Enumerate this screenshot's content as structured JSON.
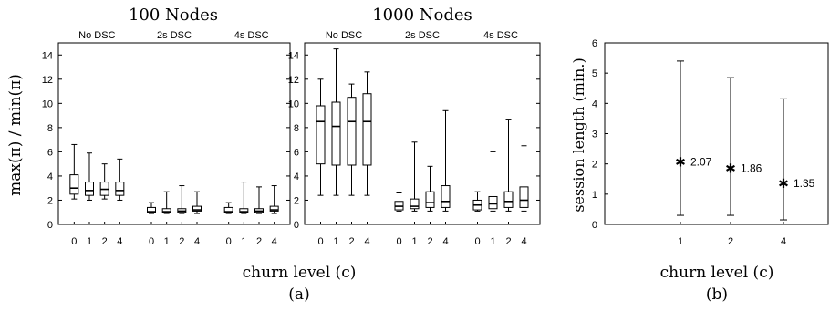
{
  "figure": {
    "panel_a_label": "(a)",
    "panel_b_label": "(b)",
    "xlabel_a": "churn level (c)",
    "xlabel_b": "churn level (c)"
  },
  "chart_data": [
    {
      "type": "box",
      "title": "100 Nodes",
      "ylabel": "max(π) / min(π)",
      "ylim": [
        0,
        15
      ],
      "yticks": [
        0,
        2,
        4,
        6,
        8,
        10,
        12,
        14
      ],
      "groups": [
        {
          "label": "No DSC",
          "categories": [
            "0",
            "1",
            "2",
            "4"
          ],
          "boxes": [
            {
              "min": 2.1,
              "q1": 2.5,
              "median": 3.0,
              "q3": 4.1,
              "max": 6.6
            },
            {
              "min": 2.0,
              "q1": 2.4,
              "median": 2.8,
              "q3": 3.5,
              "max": 5.9
            },
            {
              "min": 2.1,
              "q1": 2.4,
              "median": 2.9,
              "q3": 3.5,
              "max": 5.0
            },
            {
              "min": 2.0,
              "q1": 2.4,
              "median": 2.8,
              "q3": 3.5,
              "max": 5.4
            }
          ]
        },
        {
          "label": "2s DSC",
          "categories": [
            "0",
            "1",
            "2",
            "4"
          ],
          "boxes": [
            {
              "min": 0.9,
              "q1": 1.0,
              "median": 1.05,
              "q3": 1.4,
              "max": 1.8
            },
            {
              "min": 0.9,
              "q1": 1.0,
              "median": 1.05,
              "q3": 1.3,
              "max": 2.7
            },
            {
              "min": 0.9,
              "q1": 1.0,
              "median": 1.1,
              "q3": 1.3,
              "max": 3.2
            },
            {
              "min": 0.9,
              "q1": 1.1,
              "median": 1.2,
              "q3": 1.5,
              "max": 2.7
            }
          ]
        },
        {
          "label": "4s DSC",
          "categories": [
            "0",
            "1",
            "2",
            "4"
          ],
          "boxes": [
            {
              "min": 0.9,
              "q1": 1.0,
              "median": 1.05,
              "q3": 1.4,
              "max": 1.8
            },
            {
              "min": 0.9,
              "q1": 1.0,
              "median": 1.05,
              "q3": 1.3,
              "max": 3.5
            },
            {
              "min": 0.9,
              "q1": 1.0,
              "median": 1.1,
              "q3": 1.3,
              "max": 3.1
            },
            {
              "min": 0.9,
              "q1": 1.1,
              "median": 1.2,
              "q3": 1.5,
              "max": 3.2
            }
          ]
        }
      ]
    },
    {
      "type": "box",
      "title": "1000 Nodes",
      "ylim": [
        0,
        15
      ],
      "yticks": [
        0,
        2,
        4,
        6,
        8,
        10,
        12,
        14
      ],
      "groups": [
        {
          "label": "No DSC",
          "categories": [
            "0",
            "1",
            "2",
            "4"
          ],
          "boxes": [
            {
              "min": 2.4,
              "q1": 5.0,
              "median": 8.5,
              "q3": 9.8,
              "max": 12.0
            },
            {
              "min": 2.4,
              "q1": 4.9,
              "median": 8.1,
              "q3": 10.1,
              "max": 14.5
            },
            {
              "min": 2.4,
              "q1": 4.9,
              "median": 8.5,
              "q3": 10.5,
              "max": 11.6
            },
            {
              "min": 2.4,
              "q1": 4.9,
              "median": 8.5,
              "q3": 10.8,
              "max": 12.6
            }
          ]
        },
        {
          "label": "2s DSC",
          "categories": [
            "0",
            "1",
            "2",
            "4"
          ],
          "boxes": [
            {
              "min": 1.1,
              "q1": 1.2,
              "median": 1.5,
              "q3": 1.9,
              "max": 2.6
            },
            {
              "min": 1.1,
              "q1": 1.3,
              "median": 1.5,
              "q3": 2.1,
              "max": 6.8
            },
            {
              "min": 1.1,
              "q1": 1.4,
              "median": 1.8,
              "q3": 2.7,
              "max": 4.8
            },
            {
              "min": 1.1,
              "q1": 1.4,
              "median": 1.9,
              "q3": 3.2,
              "max": 9.4
            }
          ]
        },
        {
          "label": "4s DSC",
          "categories": [
            "0",
            "1",
            "2",
            "4"
          ],
          "boxes": [
            {
              "min": 1.1,
              "q1": 1.2,
              "median": 1.6,
              "q3": 2.0,
              "max": 2.7
            },
            {
              "min": 1.1,
              "q1": 1.3,
              "median": 1.7,
              "q3": 2.3,
              "max": 6.0
            },
            {
              "min": 1.1,
              "q1": 1.4,
              "median": 1.9,
              "q3": 2.7,
              "max": 8.7
            },
            {
              "min": 1.1,
              "q1": 1.4,
              "median": 2.0,
              "q3": 3.1,
              "max": 6.5
            }
          ]
        }
      ]
    },
    {
      "type": "errorbar",
      "ylabel": "session length (min.)",
      "ylim": [
        0,
        6
      ],
      "yticks": [
        0,
        1,
        2,
        3,
        4,
        5,
        6
      ],
      "categories": [
        "1",
        "2",
        "4"
      ],
      "points": [
        {
          "value": 2.07,
          "low": 0.3,
          "high": 5.4,
          "label": "2.07"
        },
        {
          "value": 1.86,
          "low": 0.3,
          "high": 4.85,
          "label": "1.86"
        },
        {
          "value": 1.35,
          "low": 0.15,
          "high": 4.15,
          "label": "1.35"
        }
      ]
    }
  ]
}
